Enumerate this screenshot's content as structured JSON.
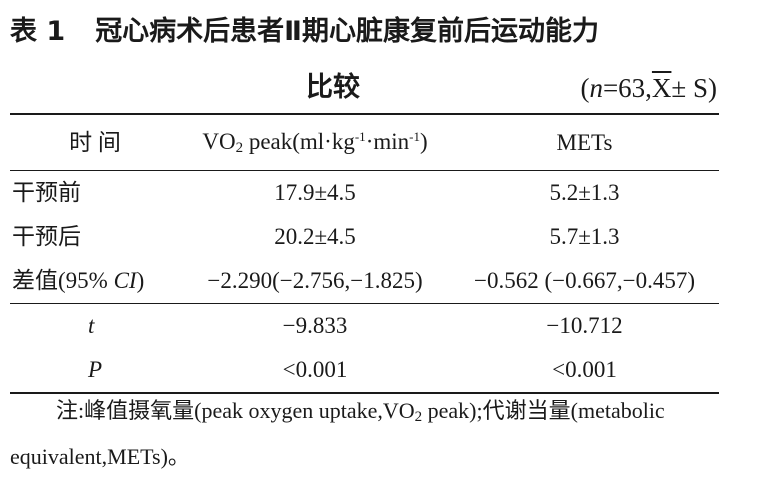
{
  "title": {
    "label": "表 1",
    "text": "冠心病术后患者Ⅱ期心脏康复前后运动能力",
    "continuation": "比较",
    "stat_open": "(",
    "n_symbol": "n",
    "n_value": "=63,",
    "xbar": "X",
    "stat_rest": "± S)"
  },
  "table": {
    "headers": {
      "col1": "时 间",
      "col2_pre": "VO",
      "col2_sub": "2",
      "col2_peak": " peak(ml·kg",
      "col2_sup1": "-1",
      "col2_mid": "·min",
      "col2_sup2": "-1",
      "col2_end": ")",
      "col3": "METs"
    },
    "rows": [
      {
        "label": "干预前",
        "vo2": "17.9±4.5",
        "mets": "5.2±1.3"
      },
      {
        "label": "干预后",
        "vo2": "20.2±4.5",
        "mets": "5.7±1.3"
      }
    ],
    "diff_row": {
      "label_pre": "差值(95% ",
      "label_ci": "CI",
      "label_post": ")",
      "vo2": "−2.290(−2.756,−1.825)",
      "mets": "−0.562 (−0.667,−0.457)"
    },
    "t_row": {
      "label": "t",
      "vo2": "−9.833",
      "mets": "−10.712"
    },
    "p_row": {
      "label": "P",
      "vo2": "<0.001",
      "mets": "<0.001"
    }
  },
  "note": {
    "part1": "注:峰值摄氧量(peak oxygen uptake,VO",
    "sub": "2",
    "part2": " peak);代谢当量(metabolic equivalent,METs)。"
  }
}
